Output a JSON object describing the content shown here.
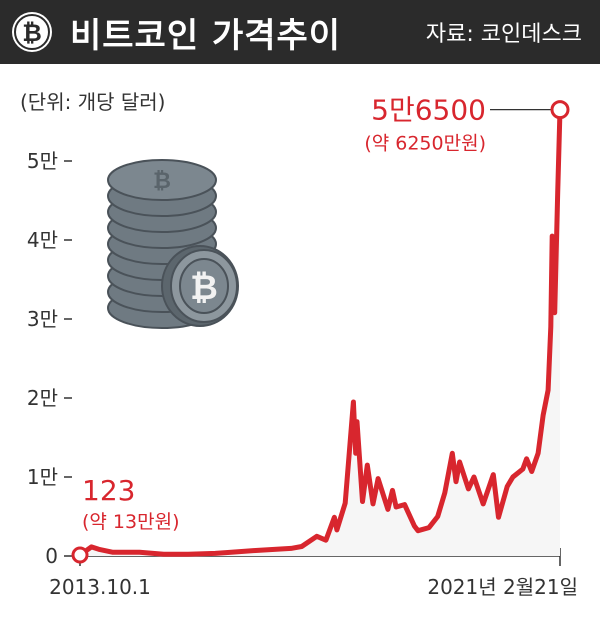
{
  "header": {
    "title": "비트코인 가격추이",
    "source": "자료: 코인데스크",
    "icon": "bitcoin-icon"
  },
  "chart_data": {
    "type": "area",
    "unit_label": "(단위: 개당 달러)",
    "colors": {
      "line": "#d8262e",
      "fill": "#f6f6f6",
      "text": "#333333",
      "header": "#2b2b2b"
    },
    "y_ticks": [
      {
        "value": 0,
        "label": "0"
      },
      {
        "value": 10000,
        "label": "1만"
      },
      {
        "value": 20000,
        "label": "2만"
      },
      {
        "value": 30000,
        "label": "3만"
      },
      {
        "value": 40000,
        "label": "4만"
      },
      {
        "value": 50000,
        "label": "5만"
      }
    ],
    "ylim": [
      0,
      57000
    ],
    "x_labels": [
      "2013.10.1",
      "2021년 2월21일"
    ],
    "x_range": [
      "2013-10-01",
      "2021-02-21"
    ],
    "series": [
      {
        "values": [
          [
            "2013-10-01",
            123
          ],
          [
            "2013-12-04",
            1150
          ],
          [
            "2014-01-15",
            850
          ],
          [
            "2014-04-01",
            480
          ],
          [
            "2014-09-01",
            480
          ],
          [
            "2015-01-15",
            220
          ],
          [
            "2015-06-01",
            230
          ],
          [
            "2015-11-01",
            330
          ],
          [
            "2016-01-01",
            430
          ],
          [
            "2016-06-15",
            700
          ],
          [
            "2016-12-31",
            960
          ],
          [
            "2017-03-01",
            1200
          ],
          [
            "2017-05-25",
            2500
          ],
          [
            "2017-07-15",
            2000
          ],
          [
            "2017-09-01",
            4900
          ],
          [
            "2017-09-15",
            3300
          ],
          [
            "2017-11-01",
            6700
          ],
          [
            "2017-12-17",
            19500
          ],
          [
            "2017-12-30",
            13000
          ],
          [
            "2018-01-06",
            17000
          ],
          [
            "2018-02-06",
            6900
          ],
          [
            "2018-03-05",
            11500
          ],
          [
            "2018-04-06",
            6600
          ],
          [
            "2018-05-05",
            9800
          ],
          [
            "2018-06-29",
            5900
          ],
          [
            "2018-07-25",
            8300
          ],
          [
            "2018-08-14",
            6200
          ],
          [
            "2018-10-01",
            6500
          ],
          [
            "2018-11-25",
            3800
          ],
          [
            "2018-12-15",
            3200
          ],
          [
            "2019-02-15",
            3600
          ],
          [
            "2019-04-05",
            5000
          ],
          [
            "2019-05-15",
            8000
          ],
          [
            "2019-06-26",
            13000
          ],
          [
            "2019-07-17",
            9400
          ],
          [
            "2019-08-06",
            11900
          ],
          [
            "2019-09-25",
            8500
          ],
          [
            "2019-10-26",
            10000
          ],
          [
            "2019-12-17",
            6600
          ],
          [
            "2020-02-12",
            10300
          ],
          [
            "2020-03-12",
            4900
          ],
          [
            "2020-04-30",
            8800
          ],
          [
            "2020-06-01",
            10000
          ],
          [
            "2020-07-27",
            11000
          ],
          [
            "2020-08-17",
            12300
          ],
          [
            "2020-09-15",
            10700
          ],
          [
            "2020-10-21",
            13000
          ],
          [
            "2020-11-18",
            17800
          ],
          [
            "2020-12-16",
            21000
          ],
          [
            "2020-12-31",
            29000
          ],
          [
            "2021-01-08",
            40500
          ],
          [
            "2021-01-22",
            30800
          ],
          [
            "2021-02-08",
            46000
          ],
          [
            "2021-02-21",
            56500
          ]
        ]
      }
    ],
    "annotations": {
      "start": {
        "date": "2013-10-01",
        "value": 123,
        "label": "123",
        "sublabel": "(약 13만원)"
      },
      "end": {
        "date": "2021-02-21",
        "value": 56500,
        "label": "5만6500",
        "sublabel": "(약 6250만원)"
      }
    }
  }
}
